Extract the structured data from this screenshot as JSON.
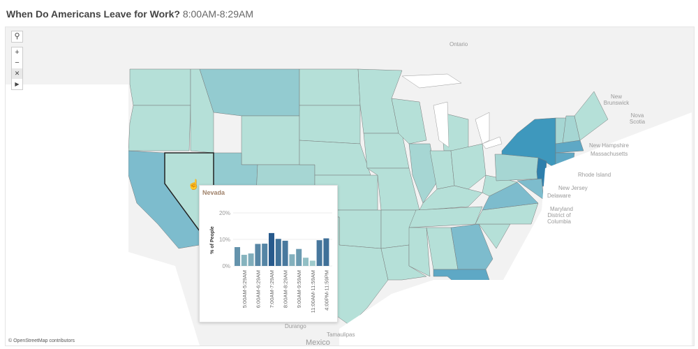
{
  "header": {
    "title": "When Do Americans Leave for Work?",
    "subtitle": "8:00AM-8:29AM"
  },
  "map_controls": {
    "search_icon": "magnifier-icon",
    "zoom_in": "+",
    "zoom_out": "−",
    "pin_icon": "reset-pin-icon",
    "expand_icon": "play-triangle-icon"
  },
  "map_labels": {
    "ontario": "Ontario",
    "new_brunswick": "New Brunswick",
    "nova_scotia": "Nova Scotia",
    "new_hampshire": "New Hampshire",
    "massachusetts": "Massachusetts",
    "rhode_island": "Rhode Island",
    "new_jersey": "New Jersey",
    "delaware": "Delaware",
    "maryland": "Maryland",
    "dc": "District of Columbia",
    "durango": "Durango",
    "tamaulipas": "Tamaulipas",
    "mexico": "Mexico"
  },
  "credit": "© OpenStreetMap contributors",
  "colors": {
    "low": "#b5e0d8",
    "mid": "#7dbccd",
    "high": "#2e7fac",
    "selected_border": "#222222"
  },
  "tooltip": {
    "state": "Nevada",
    "chart_data": {
      "type": "bar",
      "title": "",
      "ylabel": "% of People",
      "ylim": [
        0,
        20
      ],
      "yticks": [
        "0%",
        "10%",
        "20%"
      ],
      "categories": [
        "",
        "5:00AM-5:29AM",
        "",
        "6:00AM-6:29AM",
        "",
        "7:00AM-7:29AM",
        "",
        "8:00AM-8:29AM",
        "",
        "9:00AM-9:59AM",
        "",
        "11:00AM-11:59AM",
        "",
        "4:00PM-11:59PM"
      ],
      "values": [
        7.1,
        4.2,
        4.7,
        8.3,
        8.4,
        12.4,
        10.2,
        9.5,
        4.4,
        6.4,
        3.1,
        2.0,
        9.7,
        10.4
      ]
    }
  }
}
